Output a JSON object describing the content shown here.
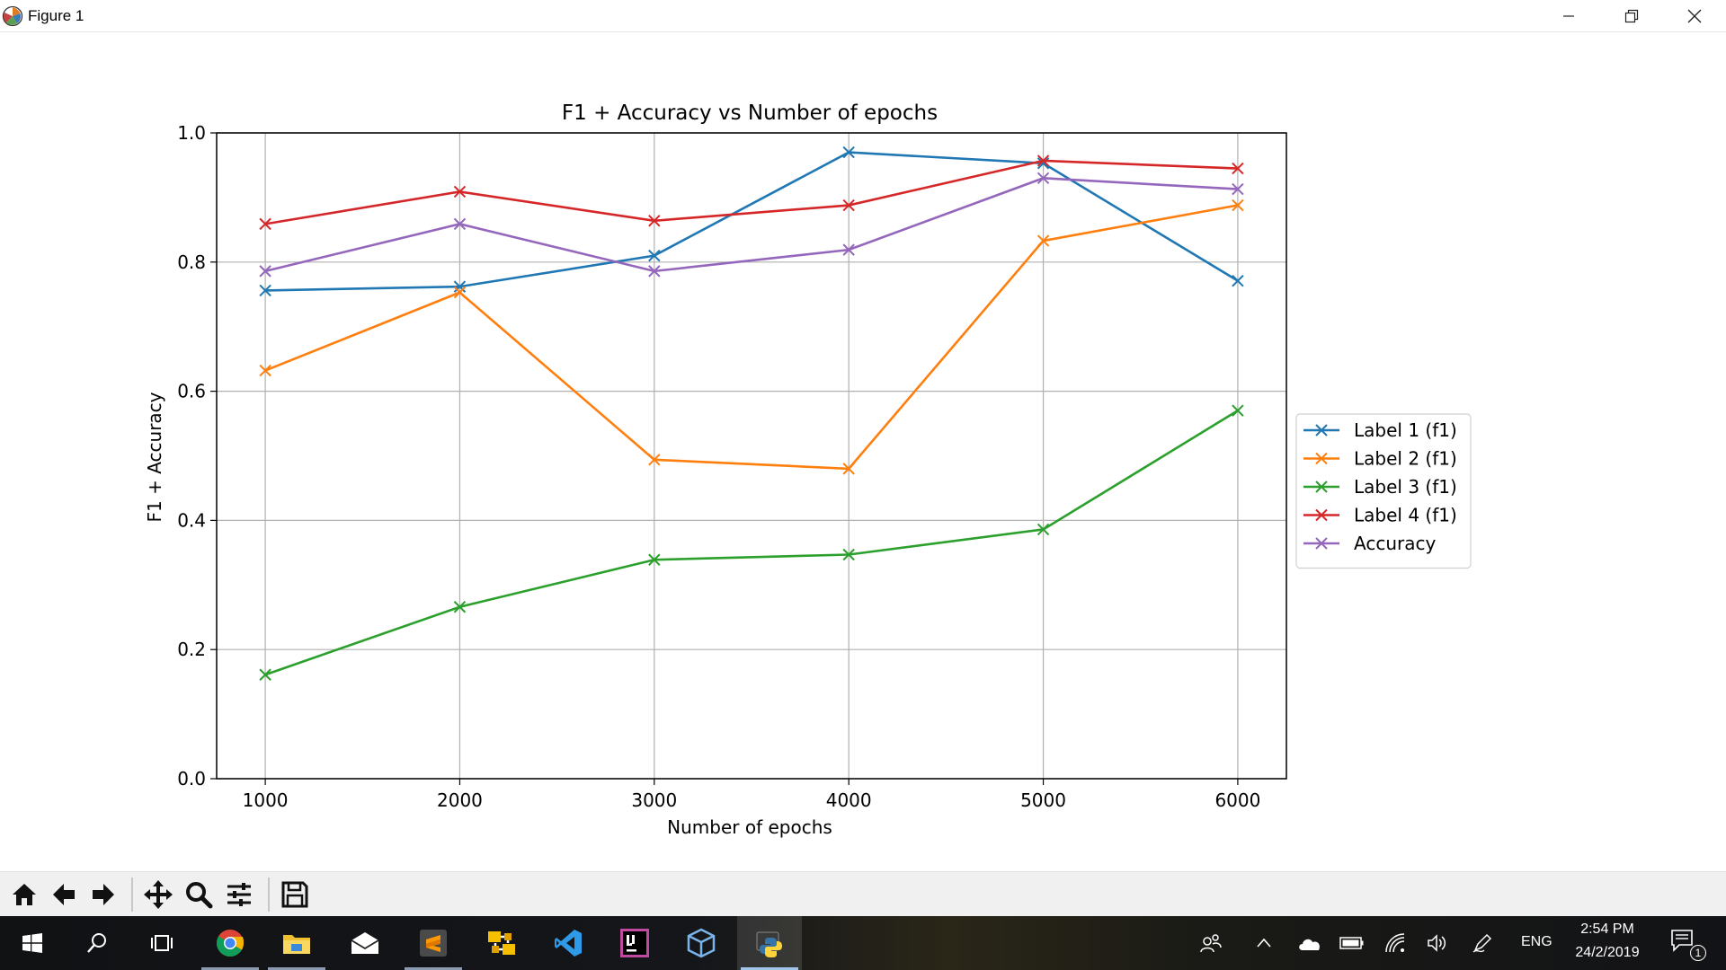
{
  "window": {
    "title": "Figure 1",
    "buttons": [
      "minimize",
      "maximize",
      "close"
    ]
  },
  "chart_data": {
    "type": "line",
    "title": "F1 + Accuracy vs Number of epochs",
    "xlabel": "Number of epochs",
    "ylabel": "F1 + Accuracy",
    "x": [
      1000,
      2000,
      3000,
      4000,
      5000,
      6000
    ],
    "xticks": [
      "1000",
      "2000",
      "3000",
      "4000",
      "5000",
      "6000"
    ],
    "yticks": [
      "0.0",
      "0.2",
      "0.4",
      "0.6",
      "0.8",
      "1.0"
    ],
    "xlim": [
      750,
      6250
    ],
    "ylim": [
      0.0,
      1.0
    ],
    "grid": true,
    "marker": "x",
    "legend_position": "outside right",
    "series": [
      {
        "name": "Label 1 (f1)",
        "color": "#1f77b4",
        "values": [
          0.756,
          0.762,
          0.81,
          0.97,
          0.953,
          0.771
        ]
      },
      {
        "name": "Label 2 (f1)",
        "color": "#ff7f0e",
        "values": [
          0.632,
          0.753,
          0.494,
          0.48,
          0.833,
          0.888
        ]
      },
      {
        "name": "Label 3 (f1)",
        "color": "#2ca02c",
        "values": [
          0.161,
          0.266,
          0.339,
          0.347,
          0.386,
          0.57
        ]
      },
      {
        "name": "Label 4 (f1)",
        "color": "#d62728",
        "values": [
          0.859,
          0.909,
          0.864,
          0.888,
          0.957,
          0.945
        ]
      },
      {
        "name": "Accuracy",
        "color": "#9467bd",
        "values": [
          0.786,
          0.859,
          0.786,
          0.819,
          0.93,
          0.913
        ]
      }
    ]
  },
  "toolbar": {
    "buttons": [
      "home-icon",
      "back-icon",
      "forward-icon",
      "pan-icon",
      "zoom-icon",
      "subplots-icon",
      "save-icon"
    ]
  },
  "taskbar": {
    "apps": [
      "start-icon",
      "search-icon",
      "task-view-icon",
      "chrome-icon",
      "file-explorer-icon",
      "mail-icon",
      "sublime-text-icon",
      "winscp-icon",
      "vscode-icon",
      "intellij-icon",
      "virtualbox-icon",
      "python-icon"
    ],
    "language": "ENG",
    "time": "2:54 PM",
    "date": "24/2/2019",
    "notification_count": "1"
  }
}
